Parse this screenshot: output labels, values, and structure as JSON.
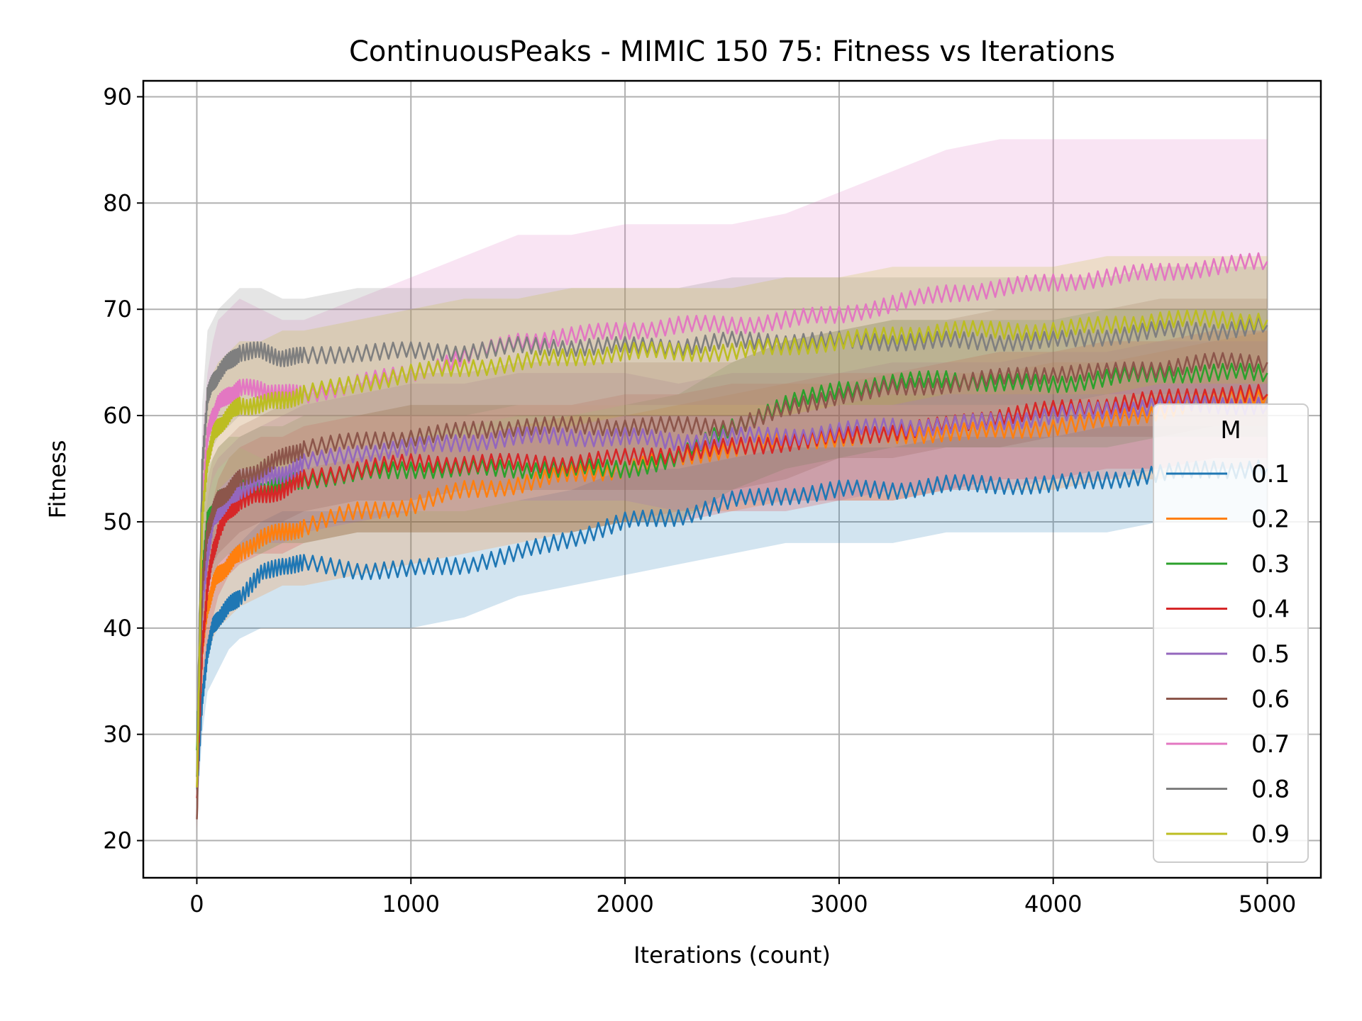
{
  "chart_data": {
    "type": "line",
    "title": "ContinuousPeaks - MIMIC 150 75: Fitness vs Iterations",
    "xlabel": "Iterations (count)",
    "ylabel": "Fitness",
    "xlim": [
      -250,
      5250
    ],
    "ylim": [
      16.5,
      91.5
    ],
    "xticks": [
      0,
      1000,
      2000,
      3000,
      4000,
      5000
    ],
    "yticks": [
      20,
      30,
      40,
      50,
      60,
      70,
      80,
      90
    ],
    "grid": true,
    "legend": {
      "title": "M",
      "placement": "center-right"
    },
    "x": [
      0,
      25,
      50,
      75,
      100,
      150,
      200,
      300,
      400,
      500,
      750,
      1000,
      1250,
      1500,
      1750,
      2000,
      2250,
      2500,
      2750,
      3000,
      3250,
      3500,
      3750,
      4000,
      4250,
      4500,
      4750,
      5000
    ],
    "series": [
      {
        "name": "0.1",
        "color": "#1f77b4",
        "values": [
          25,
          33,
          38,
          40,
          41,
          42,
          43,
          45,
          46,
          46,
          45.5,
          45.5,
          46,
          47,
          48.5,
          50,
          50.5,
          52,
          52.5,
          53,
          53,
          53.5,
          53.5,
          53.5,
          54,
          54.5,
          55,
          55
        ],
        "lower": [
          22,
          30,
          34,
          35,
          36,
          38,
          39,
          40,
          40,
          40,
          40,
          40,
          41,
          43,
          44,
          45,
          46,
          47,
          48,
          48,
          48,
          49,
          49,
          49,
          49,
          50,
          50,
          50
        ],
        "upper": [
          28,
          36,
          42,
          44,
          45,
          47,
          48,
          50,
          51,
          51,
          51,
          51,
          51,
          52,
          53,
          55,
          55,
          56,
          57,
          57,
          57,
          58,
          58,
          58,
          59,
          59,
          59,
          59
        ]
      },
      {
        "name": "0.2",
        "color": "#ff7f0e",
        "values": [
          25,
          38,
          42,
          44,
          45,
          46,
          47,
          48.5,
          49,
          49.5,
          51,
          51.5,
          53,
          53.5,
          54.5,
          55,
          56,
          57,
          57.5,
          58,
          58,
          58.5,
          58.5,
          59,
          59.5,
          60.5,
          61.5,
          62
        ],
        "lower": [
          22,
          34,
          37,
          39,
          40,
          41,
          42,
          43,
          44,
          44,
          45,
          46,
          47,
          48,
          49,
          50,
          51,
          51,
          52,
          52,
          52,
          53,
          53,
          53,
          54,
          54,
          55,
          55
        ],
        "upper": [
          28,
          42,
          46,
          49,
          50,
          51,
          52,
          53,
          54,
          55,
          56,
          57,
          58,
          59,
          60,
          60,
          61,
          62,
          63,
          63,
          64,
          64,
          64,
          65,
          65,
          66,
          67,
          68
        ]
      },
      {
        "name": "0.3",
        "color": "#2ca02c",
        "values": [
          28.5,
          45,
          50,
          51,
          52,
          52.5,
          53,
          53,
          53.5,
          54,
          54.5,
          55,
          55,
          55,
          55,
          55,
          56,
          59,
          61,
          62.5,
          63,
          63.5,
          63,
          63,
          63.5,
          64,
          64,
          64
        ],
        "lower": [
          25,
          40,
          44,
          45,
          46,
          47,
          47,
          47,
          48,
          48,
          49,
          49,
          49,
          49,
          49,
          50,
          50,
          53,
          55,
          56,
          57,
          57,
          57,
          57,
          57,
          58,
          58,
          58
        ],
        "upper": [
          32,
          50,
          55,
          56,
          57,
          58,
          58,
          59,
          59,
          60,
          60,
          61,
          61,
          61,
          61,
          61,
          62,
          65,
          67,
          68,
          69,
          69,
          69,
          69,
          70,
          70,
          70,
          70
        ]
      },
      {
        "name": "0.4",
        "color": "#d62728",
        "values": [
          24,
          38,
          44,
          47,
          49,
          51,
          52,
          52.5,
          53,
          54,
          55,
          55.5,
          55.5,
          55.5,
          55.5,
          56,
          56.5,
          57,
          57.5,
          58,
          58.5,
          59,
          60,
          60.5,
          61,
          61.5,
          62,
          62
        ],
        "lower": [
          21,
          33,
          38,
          41,
          43,
          45,
          46,
          47,
          47,
          48,
          49,
          49,
          49,
          49,
          49,
          50,
          50,
          51,
          51,
          52,
          52,
          53,
          54,
          54,
          55,
          55,
          56,
          56
        ],
        "upper": [
          27,
          43,
          49,
          52,
          54,
          56,
          57,
          58,
          58,
          59,
          60,
          61,
          61,
          61,
          61,
          62,
          62,
          63,
          63,
          64,
          64,
          65,
          66,
          66,
          67,
          67,
          68,
          68
        ]
      },
      {
        "name": "0.5",
        "color": "#9467bd",
        "values": [
          26,
          42,
          47,
          50,
          51,
          52,
          53,
          54,
          54.5,
          55.5,
          56.5,
          57,
          57.5,
          58,
          58,
          58,
          57.5,
          58,
          58,
          58.5,
          59,
          59,
          59.5,
          60,
          60.5,
          61,
          61,
          61
        ],
        "lower": [
          23,
          37,
          42,
          44,
          45,
          46,
          47,
          48,
          48,
          49,
          50,
          51,
          51,
          52,
          52,
          52,
          51,
          52,
          52,
          52,
          53,
          53,
          53,
          54,
          54,
          55,
          55,
          55
        ],
        "upper": [
          29,
          47,
          52,
          55,
          56,
          57,
          58,
          59,
          60,
          61,
          62,
          63,
          63,
          64,
          64,
          64,
          63,
          64,
          64,
          64,
          65,
          65,
          65,
          66,
          66,
          67,
          67,
          67
        ]
      },
      {
        "name": "0.6",
        "color": "#8c564b",
        "values": [
          22,
          44,
          49,
          51,
          52,
          53,
          54,
          55,
          56,
          57,
          57.5,
          58,
          58.5,
          59,
          59,
          59,
          59,
          59,
          60.5,
          62,
          62.5,
          63,
          63.5,
          64,
          64,
          64.5,
          65,
          65
        ],
        "lower": [
          20,
          39,
          44,
          46,
          47,
          48,
          49,
          50,
          50,
          51,
          52,
          52,
          53,
          53,
          53,
          53,
          53,
          53,
          54,
          56,
          56,
          57,
          57,
          58,
          58,
          58,
          59,
          59
        ],
        "upper": [
          24,
          49,
          54,
          56,
          57,
          58,
          59,
          60,
          61,
          62,
          63,
          64,
          64,
          65,
          65,
          65,
          65,
          65,
          67,
          68,
          69,
          69,
          70,
          70,
          70,
          71,
          71,
          71
        ]
      },
      {
        "name": "0.7",
        "color": "#e377c2",
        "values": [
          25,
          52,
          58,
          60,
          61,
          62,
          62.5,
          62.5,
          62,
          62,
          63,
          64,
          65.5,
          67,
          67.5,
          68,
          68.5,
          68.5,
          69,
          69.5,
          70.5,
          71.5,
          72,
          72.5,
          73,
          73.5,
          74,
          74.5
        ],
        "lower": [
          22,
          46,
          52,
          54,
          55,
          56,
          57,
          56,
          56,
          56,
          57,
          58,
          59,
          60,
          60,
          61,
          61,
          61,
          61,
          61,
          62,
          62,
          62,
          62,
          62,
          62,
          62,
          62
        ],
        "upper": [
          28,
          58,
          64,
          67,
          69,
          70,
          71,
          70,
          69,
          69,
          71,
          73,
          75,
          77,
          77,
          78,
          78,
          78,
          79,
          81,
          83,
          85,
          86,
          86,
          86,
          86,
          86,
          86
        ]
      },
      {
        "name": "0.8",
        "color": "#7f7f7f",
        "values": [
          26,
          55,
          62,
          63,
          64,
          65,
          66,
          66,
          65.5,
          65.5,
          66,
          66,
          66,
          66.5,
          66.5,
          66.5,
          66.5,
          67,
          67,
          67,
          67,
          67,
          67,
          67,
          67.5,
          68,
          68,
          68.5
        ],
        "lower": [
          23,
          49,
          56,
          57,
          58,
          59,
          60,
          60,
          60,
          60,
          60,
          60,
          60,
          61,
          61,
          61,
          61,
          61,
          61,
          61,
          61,
          61,
          61,
          61,
          62,
          62,
          62,
          62
        ],
        "upper": [
          29,
          61,
          68,
          69,
          70,
          71,
          72,
          72,
          71,
          71,
          72,
          72,
          72,
          72,
          72,
          72,
          72,
          73,
          73,
          73,
          73,
          73,
          73,
          73,
          73,
          74,
          74,
          74
        ]
      },
      {
        "name": "0.9",
        "color": "#bcbd22",
        "values": [
          25,
          50,
          56,
          58,
          59,
          60,
          61,
          61,
          61.5,
          62,
          63,
          64,
          64.5,
          65,
          65.5,
          66,
          66,
          66,
          66.5,
          67,
          67.5,
          68,
          68,
          68,
          68.5,
          69,
          69,
          69
        ],
        "lower": [
          22,
          44,
          50,
          52,
          53,
          54,
          55,
          55,
          55,
          56,
          57,
          58,
          58,
          59,
          59,
          60,
          60,
          60,
          60,
          61,
          61,
          62,
          62,
          62,
          62,
          63,
          63,
          63
        ],
        "upper": [
          28,
          56,
          62,
          64,
          65,
          66,
          67,
          67,
          68,
          68,
          69,
          70,
          71,
          71,
          72,
          72,
          72,
          72,
          73,
          73,
          74,
          74,
          74,
          74,
          75,
          75,
          75,
          75
        ]
      }
    ]
  }
}
